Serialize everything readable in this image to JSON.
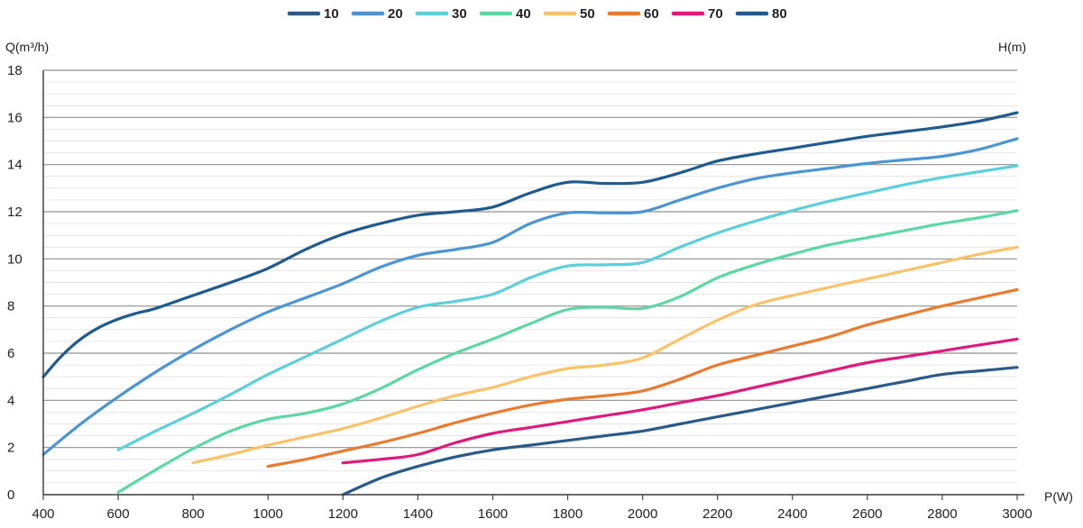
{
  "chart_data": {
    "type": "line",
    "title": "",
    "xlabel": "P(W)",
    "ylabel": "Q(m³/h)",
    "y2label": "H(m)",
    "xlim": [
      400,
      3000
    ],
    "ylim": [
      0,
      18
    ],
    "x_ticks": [
      "400",
      "600",
      "800",
      "1000",
      "1200",
      "1400",
      "1600",
      "1800",
      "2000",
      "2200",
      "2400",
      "2600",
      "2800",
      "3000"
    ],
    "y_ticks": [
      "0",
      "2",
      "4",
      "6",
      "8",
      "10",
      "12",
      "14",
      "16",
      "18"
    ],
    "grid": "horizontal",
    "legend_position": "top-center",
    "series": [
      {
        "name": "10",
        "color": "#2a5a8a",
        "points": [
          [
            1200,
            0
          ],
          [
            1300,
            0.7
          ],
          [
            1400,
            1.2
          ],
          [
            1500,
            1.6
          ],
          [
            1600,
            1.9
          ],
          [
            1700,
            2.1
          ],
          [
            1800,
            2.3
          ],
          [
            1900,
            2.5
          ],
          [
            2000,
            2.7
          ],
          [
            2100,
            3.0
          ],
          [
            2200,
            3.3
          ],
          [
            2300,
            3.6
          ],
          [
            2400,
            3.9
          ],
          [
            2500,
            4.2
          ],
          [
            2600,
            4.5
          ],
          [
            2700,
            4.8
          ],
          [
            2800,
            5.1
          ],
          [
            2900,
            5.25
          ],
          [
            3000,
            5.4
          ]
        ]
      },
      {
        "name": "70",
        "color": "#e0197d",
        "points": [
          [
            1200,
            1.35
          ],
          [
            1300,
            1.5
          ],
          [
            1400,
            1.7
          ],
          [
            1500,
            2.2
          ],
          [
            1600,
            2.6
          ],
          [
            1700,
            2.85
          ],
          [
            1800,
            3.1
          ],
          [
            1900,
            3.35
          ],
          [
            2000,
            3.6
          ],
          [
            2100,
            3.9
          ],
          [
            2200,
            4.2
          ],
          [
            2300,
            4.55
          ],
          [
            2400,
            4.9
          ],
          [
            2500,
            5.25
          ],
          [
            2600,
            5.6
          ],
          [
            2700,
            5.85
          ],
          [
            2800,
            6.1
          ],
          [
            2900,
            6.35
          ],
          [
            3000,
            6.6
          ]
        ]
      },
      {
        "name": "60",
        "color": "#e97b30",
        "points": [
          [
            1000,
            1.2
          ],
          [
            1100,
            1.5
          ],
          [
            1200,
            1.85
          ],
          [
            1300,
            2.2
          ],
          [
            1400,
            2.6
          ],
          [
            1500,
            3.05
          ],
          [
            1600,
            3.45
          ],
          [
            1700,
            3.8
          ],
          [
            1800,
            4.05
          ],
          [
            1900,
            4.2
          ],
          [
            2000,
            4.4
          ],
          [
            2100,
            4.9
          ],
          [
            2200,
            5.5
          ],
          [
            2300,
            5.9
          ],
          [
            2400,
            6.3
          ],
          [
            2500,
            6.7
          ],
          [
            2600,
            7.2
          ],
          [
            2700,
            7.6
          ],
          [
            2800,
            8.0
          ],
          [
            2900,
            8.35
          ],
          [
            3000,
            8.7
          ]
        ]
      },
      {
        "name": "50",
        "color": "#f8c36a",
        "points": [
          [
            800,
            1.35
          ],
          [
            900,
            1.7
          ],
          [
            1000,
            2.1
          ],
          [
            1100,
            2.45
          ],
          [
            1200,
            2.8
          ],
          [
            1300,
            3.25
          ],
          [
            1400,
            3.75
          ],
          [
            1500,
            4.2
          ],
          [
            1600,
            4.55
          ],
          [
            1700,
            5.0
          ],
          [
            1800,
            5.35
          ],
          [
            1900,
            5.5
          ],
          [
            2000,
            5.8
          ],
          [
            2100,
            6.6
          ],
          [
            2200,
            7.4
          ],
          [
            2300,
            8.05
          ],
          [
            2400,
            8.45
          ],
          [
            2500,
            8.8
          ],
          [
            2600,
            9.15
          ],
          [
            2700,
            9.5
          ],
          [
            2800,
            9.85
          ],
          [
            2900,
            10.2
          ],
          [
            3000,
            10.5
          ]
        ]
      },
      {
        "name": "40",
        "color": "#5dd8a4",
        "points": [
          [
            600,
            0.1
          ],
          [
            700,
            1.05
          ],
          [
            800,
            1.95
          ],
          [
            900,
            2.7
          ],
          [
            1000,
            3.2
          ],
          [
            1100,
            3.45
          ],
          [
            1200,
            3.85
          ],
          [
            1300,
            4.5
          ],
          [
            1400,
            5.3
          ],
          [
            1500,
            6.0
          ],
          [
            1600,
            6.6
          ],
          [
            1700,
            7.25
          ],
          [
            1800,
            7.85
          ],
          [
            1900,
            7.95
          ],
          [
            2000,
            7.9
          ],
          [
            2100,
            8.4
          ],
          [
            2200,
            9.2
          ],
          [
            2300,
            9.75
          ],
          [
            2400,
            10.2
          ],
          [
            2500,
            10.6
          ],
          [
            2600,
            10.9
          ],
          [
            2700,
            11.2
          ],
          [
            2800,
            11.5
          ],
          [
            2900,
            11.75
          ],
          [
            3000,
            12.05
          ]
        ]
      },
      {
        "name": "30",
        "color": "#5ccfd8",
        "points": [
          [
            600,
            1.9
          ],
          [
            700,
            2.7
          ],
          [
            800,
            3.45
          ],
          [
            900,
            4.25
          ],
          [
            1000,
            5.1
          ],
          [
            1100,
            5.85
          ],
          [
            1200,
            6.6
          ],
          [
            1300,
            7.35
          ],
          [
            1400,
            7.95
          ],
          [
            1500,
            8.2
          ],
          [
            1600,
            8.5
          ],
          [
            1700,
            9.2
          ],
          [
            1800,
            9.7
          ],
          [
            1900,
            9.75
          ],
          [
            2000,
            9.85
          ],
          [
            2100,
            10.5
          ],
          [
            2200,
            11.1
          ],
          [
            2300,
            11.6
          ],
          [
            2400,
            12.05
          ],
          [
            2500,
            12.45
          ],
          [
            2600,
            12.8
          ],
          [
            2700,
            13.15
          ],
          [
            2800,
            13.45
          ],
          [
            2900,
            13.7
          ],
          [
            3000,
            13.95
          ]
        ]
      },
      {
        "name": "20",
        "color": "#4b95d2",
        "points": [
          [
            400,
            1.7
          ],
          [
            500,
            3.0
          ],
          [
            600,
            4.15
          ],
          [
            700,
            5.2
          ],
          [
            800,
            6.15
          ],
          [
            900,
            7.0
          ],
          [
            1000,
            7.75
          ],
          [
            1100,
            8.35
          ],
          [
            1200,
            8.95
          ],
          [
            1300,
            9.65
          ],
          [
            1400,
            10.15
          ],
          [
            1500,
            10.4
          ],
          [
            1600,
            10.7
          ],
          [
            1700,
            11.5
          ],
          [
            1800,
            11.95
          ],
          [
            1900,
            11.95
          ],
          [
            2000,
            12.0
          ],
          [
            2100,
            12.5
          ],
          [
            2200,
            13.0
          ],
          [
            2300,
            13.4
          ],
          [
            2400,
            13.65
          ],
          [
            2500,
            13.85
          ],
          [
            2600,
            14.05
          ],
          [
            2700,
            14.2
          ],
          [
            2800,
            14.35
          ],
          [
            2900,
            14.65
          ],
          [
            3000,
            15.1
          ]
        ]
      },
      {
        "name": "80",
        "color": "#1f5b8e",
        "points": [
          [
            400,
            5.0
          ],
          [
            450,
            5.9
          ],
          [
            500,
            6.6
          ],
          [
            550,
            7.1
          ],
          [
            600,
            7.45
          ],
          [
            650,
            7.7
          ],
          [
            700,
            7.9
          ],
          [
            800,
            8.45
          ],
          [
            900,
            9.0
          ],
          [
            1000,
            9.6
          ],
          [
            1100,
            10.4
          ],
          [
            1200,
            11.05
          ],
          [
            1300,
            11.5
          ],
          [
            1400,
            11.85
          ],
          [
            1500,
            12.0
          ],
          [
            1600,
            12.2
          ],
          [
            1700,
            12.8
          ],
          [
            1800,
            13.25
          ],
          [
            1900,
            13.2
          ],
          [
            2000,
            13.25
          ],
          [
            2100,
            13.65
          ],
          [
            2200,
            14.15
          ],
          [
            2300,
            14.45
          ],
          [
            2400,
            14.7
          ],
          [
            2500,
            14.95
          ],
          [
            2600,
            15.2
          ],
          [
            2700,
            15.4
          ],
          [
            2800,
            15.6
          ],
          [
            2900,
            15.85
          ],
          [
            3000,
            16.2
          ]
        ]
      }
    ]
  }
}
